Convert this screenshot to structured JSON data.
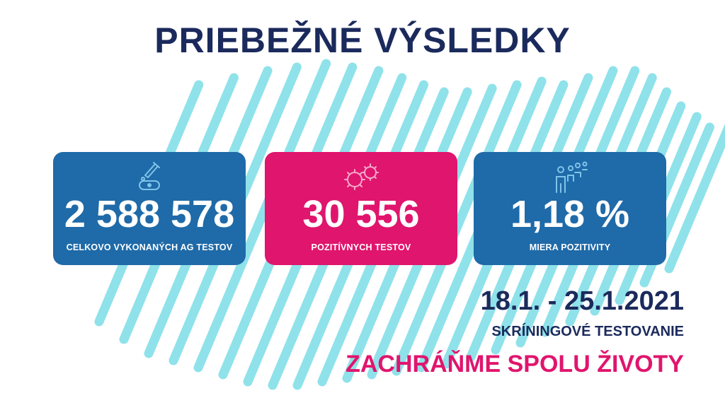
{
  "title": "PRIEBEŽNÉ VÝSLEDKY",
  "cards": [
    {
      "value": "2 588 578",
      "label": "CELKOVO VYKONANÝCH AG TESTOV",
      "color": "#1f6aa8",
      "icon": "test-kit-icon"
    },
    {
      "value": "30 556",
      "label": "POZITÍVNYCH TESTOV",
      "color": "#e0156d",
      "icon": "virus-icon"
    },
    {
      "value": "1,18 %",
      "label": "MIERA POZITIVITY",
      "color": "#1f6aa8",
      "icon": "people-queue-icon"
    }
  ],
  "date_range": "18.1. - 25.1.2021",
  "subtitle": "SKRÍNINGOVÉ TESTOVANIE",
  "slogan": "ZACHRÁŇME SPOLU ŽIVOTY",
  "colors": {
    "navy": "#1b2a5c",
    "blue": "#1f6aa8",
    "pink": "#e0156d",
    "stripe": "#8fe2ea"
  }
}
